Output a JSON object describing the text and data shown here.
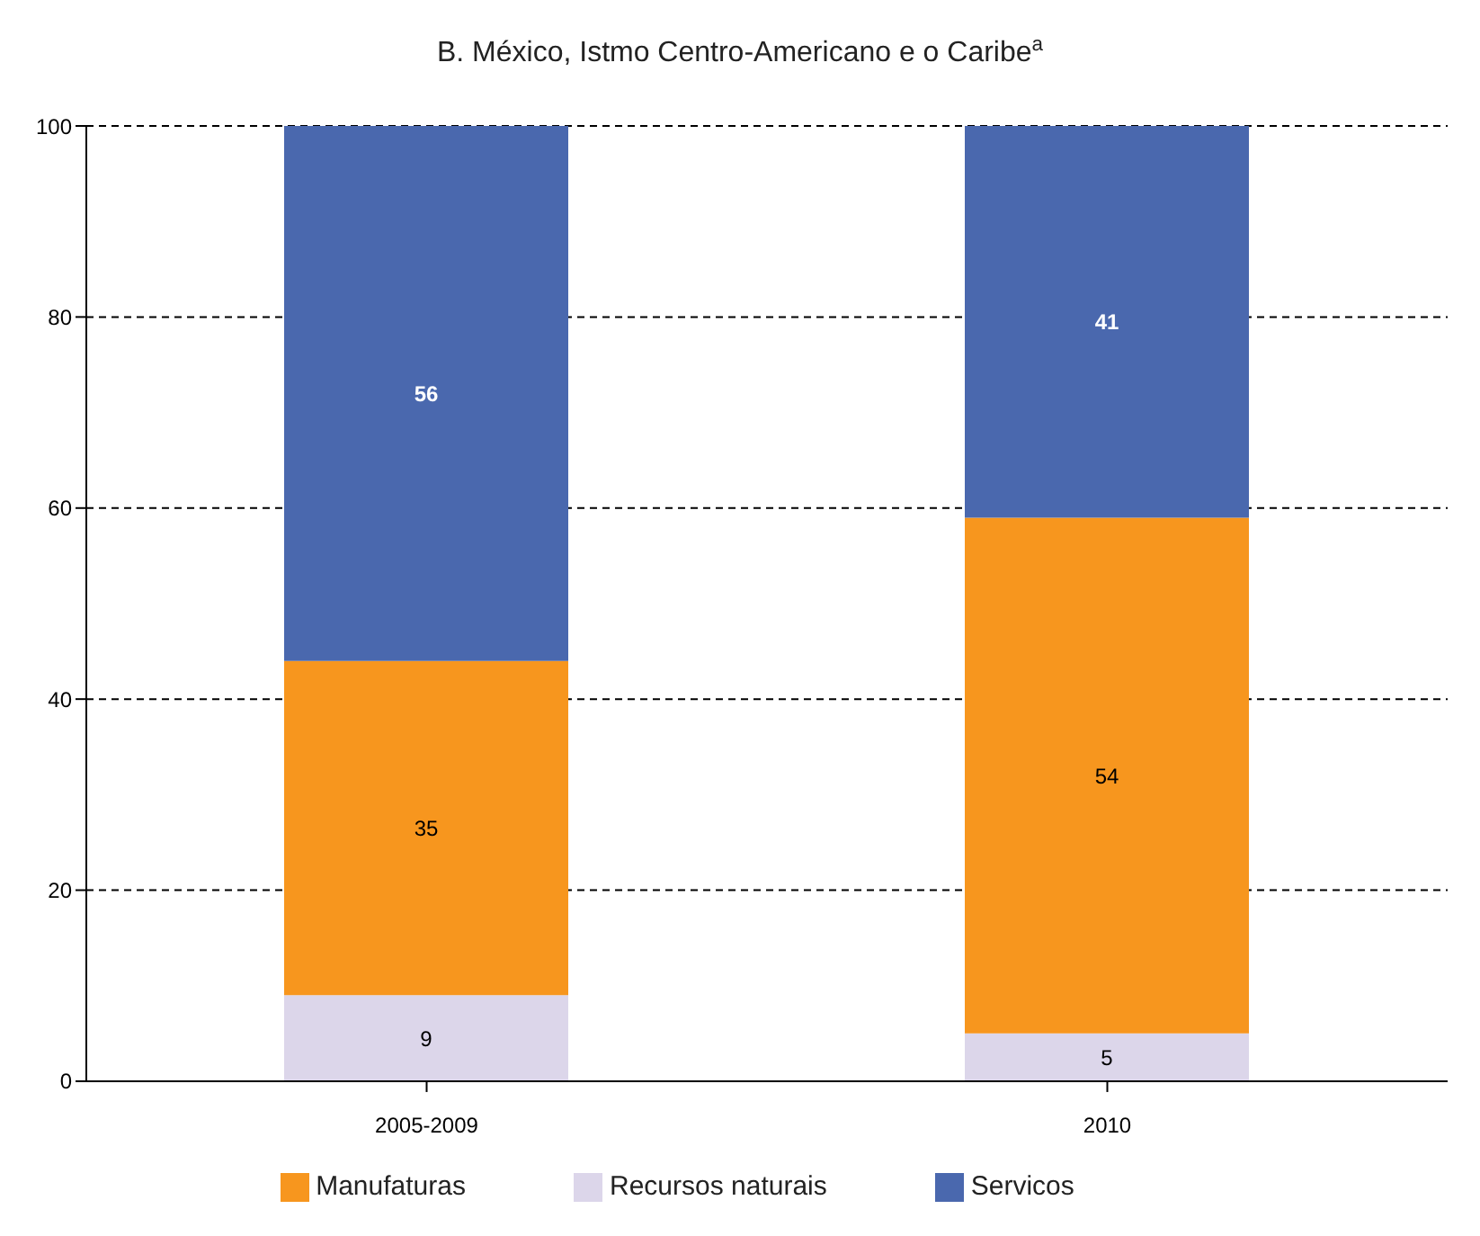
{
  "chart_data": {
    "type": "bar",
    "title": "B. México, Istmo Centro-Americano e o Caribe$^{a}$",
    "categories": [
      "2005-2009",
      "2010"
    ],
    "stacked": true,
    "series": [
      {
        "name": "Recursos naturais",
        "color": "#dcd6ea",
        "values": [
          9,
          5
        ]
      },
      {
        "name": "Manufaturas",
        "color": "#f7961e",
        "values": [
          35,
          54
        ]
      },
      {
        "name": "Servicos",
        "color": "#4a68ae",
        "values": [
          56,
          41
        ]
      }
    ],
    "ylim": [
      0,
      100
    ],
    "yticks": [
      0,
      20,
      40,
      60,
      80,
      100
    ],
    "grid": "y",
    "legend": "bottom",
    "data_labels": true
  }
}
